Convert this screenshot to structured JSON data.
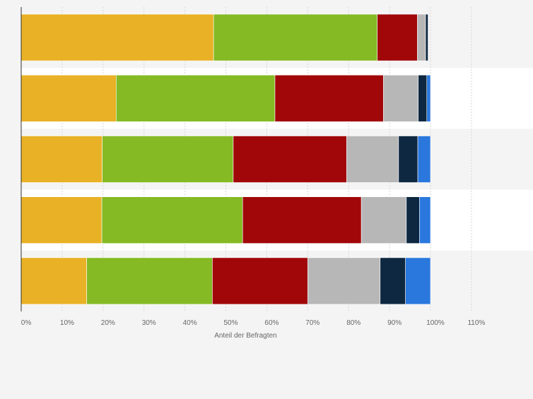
{
  "chart_data": {
    "type": "bar",
    "orientation": "horizontal",
    "stacked": true,
    "title": "",
    "xlabel": "Anteil der Befragten",
    "ylabel": "",
    "xlim": [
      0,
      1.2
    ],
    "x_ticks": [
      0,
      0.1,
      0.2,
      0.3,
      0.4,
      0.5,
      0.6,
      0.7,
      0.8,
      0.9,
      1.0,
      1.1
    ],
    "x_tick_labels": [
      "0%",
      "10%",
      "20%",
      "30%",
      "40%",
      "50%",
      "60%",
      "70%",
      "80%",
      "90%",
      "100%",
      "110%"
    ],
    "grid": true,
    "legend": "none",
    "categories": [
      "",
      "",
      "",
      "",
      ""
    ],
    "series": [
      {
        "color": "#e9b125",
        "values": [
          0.47,
          0.232,
          0.198,
          0.197,
          0.16
        ]
      },
      {
        "color": "#85ba24",
        "values": [
          0.4,
          0.388,
          0.32,
          0.344,
          0.307
        ]
      },
      {
        "color": "#a10709",
        "values": [
          0.098,
          0.265,
          0.277,
          0.29,
          0.233
        ]
      },
      {
        "color": "#b7b7b7",
        "values": [
          0.02,
          0.085,
          0.127,
          0.11,
          0.177
        ]
      },
      {
        "color": "#0e2841",
        "values": [
          0.006,
          0.021,
          0.047,
          0.032,
          0.062
        ]
      },
      {
        "color": "#2a78de",
        "values": [
          0.0,
          0.009,
          0.031,
          0.027,
          0.061
        ]
      }
    ]
  }
}
